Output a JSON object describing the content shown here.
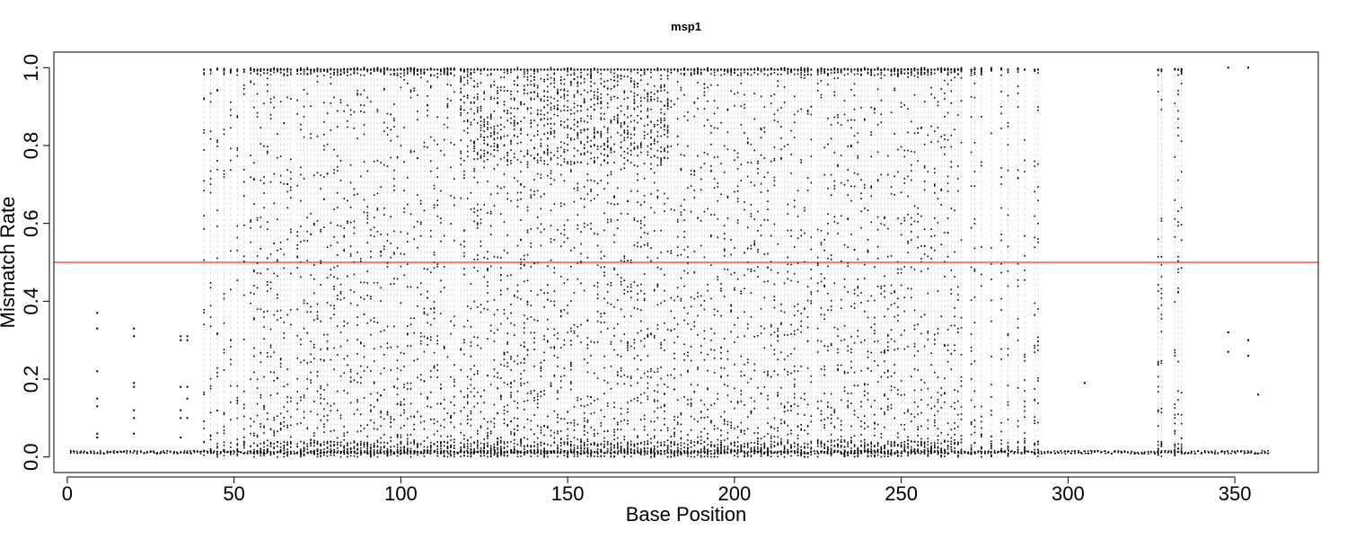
{
  "chart_data": {
    "type": "scatter",
    "title": "msp1",
    "xlabel": "Base Position",
    "ylabel": "Mismatch Rate",
    "xlim": [
      -4,
      375
    ],
    "ylim": [
      -0.04,
      1.04
    ],
    "xticks": [
      0,
      50,
      100,
      150,
      200,
      250,
      300,
      350
    ],
    "xtick_labels": [
      "0",
      "50",
      "100",
      "150",
      "200",
      "250",
      "300",
      "350"
    ],
    "yticks": [
      0.0,
      0.2,
      0.4,
      0.6,
      0.8,
      1.0
    ],
    "ytick_labels": [
      "0.0",
      "0.2",
      "0.4",
      "0.6",
      "0.8",
      "1.0"
    ],
    "grid": false,
    "reference_line": {
      "orientation": "horizontal",
      "y": 0.5,
      "color": "#ff0000"
    },
    "marker_color": "#000000",
    "guide_line_color": "#d3d3d3",
    "guide_line_style": "dashed",
    "base_range": [
      1,
      360
    ],
    "baseline_rate": 0.008,
    "variable_positions": [
      41,
      43,
      45,
      47,
      49,
      51,
      53,
      55,
      56,
      57,
      58,
      59,
      60,
      61,
      62,
      63,
      64,
      65,
      66,
      67,
      69,
      70,
      71,
      72,
      73,
      74,
      75,
      76,
      77,
      78,
      79,
      80,
      81,
      82,
      83,
      84,
      85,
      86,
      87,
      88,
      89,
      90,
      91,
      92,
      93,
      94,
      95,
      96,
      97,
      98,
      99,
      100,
      101,
      102,
      103,
      104,
      105,
      106,
      107,
      108,
      109,
      110,
      111,
      112,
      113,
      114,
      115,
      116,
      118,
      119,
      120,
      121,
      122,
      123,
      124,
      125,
      126,
      127,
      128,
      129,
      130,
      131,
      132,
      133,
      134,
      135,
      136,
      137,
      138,
      139,
      140,
      141,
      142,
      143,
      144,
      145,
      146,
      147,
      148,
      149,
      150,
      151,
      152,
      153,
      154,
      155,
      156,
      157,
      158,
      159,
      160,
      161,
      162,
      163,
      164,
      165,
      166,
      167,
      168,
      169,
      170,
      171,
      172,
      173,
      174,
      175,
      176,
      177,
      178,
      179,
      180,
      181,
      182,
      183,
      184,
      185,
      186,
      187,
      188,
      189,
      190,
      191,
      192,
      193,
      194,
      195,
      196,
      197,
      198,
      199,
      200,
      201,
      202,
      203,
      204,
      205,
      206,
      207,
      208,
      209,
      210,
      211,
      212,
      213,
      214,
      215,
      216,
      217,
      218,
      219,
      220,
      221,
      222,
      223,
      225,
      226,
      227,
      228,
      229,
      230,
      231,
      232,
      233,
      234,
      235,
      236,
      237,
      238,
      239,
      240,
      241,
      242,
      243,
      244,
      245,
      246,
      247,
      248,
      249,
      250,
      251,
      252,
      253,
      254,
      255,
      256,
      257,
      258,
      259,
      260,
      261,
      262,
      263,
      264,
      265,
      266,
      267,
      268,
      271,
      272,
      274,
      277,
      280,
      282,
      285,
      287,
      290,
      291,
      327,
      328,
      332,
      333,
      334
    ],
    "sparse_points": [
      {
        "x": 9,
        "y": [
          0.37,
          0.33,
          0.22,
          0.15,
          0.13,
          0.06,
          0.05
        ]
      },
      {
        "x": 20,
        "y": [
          0.33,
          0.31,
          0.19,
          0.18,
          0.12,
          0.1,
          0.06
        ]
      },
      {
        "x": 34,
        "y": [
          0.31,
          0.3,
          0.18,
          0.12,
          0.1,
          0.05
        ]
      },
      {
        "x": 36,
        "y": [
          0.31,
          0.3,
          0.18,
          0.15,
          0.1
        ]
      },
      {
        "x": 305,
        "y": [
          0.19
        ]
      },
      {
        "x": 348,
        "y": [
          1.0,
          0.32,
          0.27
        ]
      },
      {
        "x": 354,
        "y": [
          1.0,
          0.3,
          0.26
        ]
      },
      {
        "x": 357,
        "y": [
          0.16
        ]
      }
    ]
  }
}
